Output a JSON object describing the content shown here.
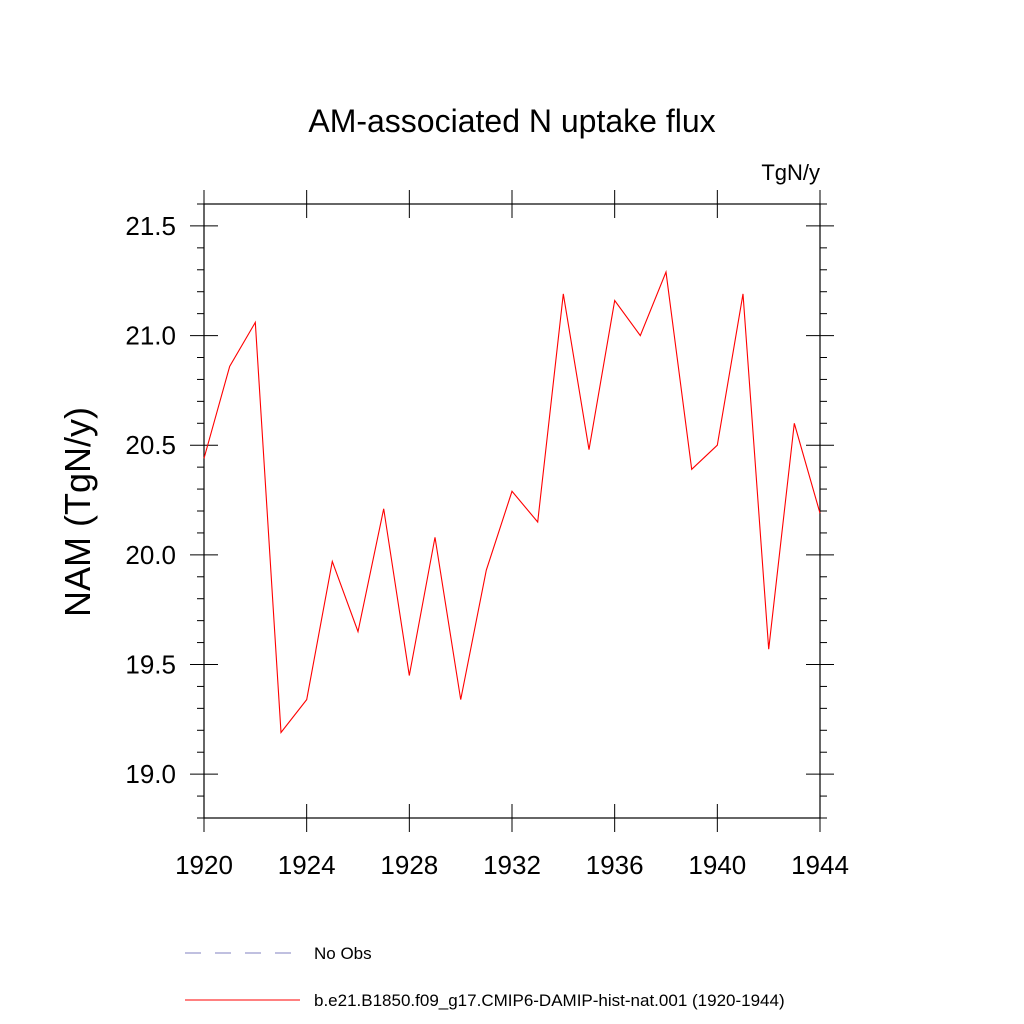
{
  "chart_data": {
    "type": "line",
    "title": "AM-associated N uptake flux",
    "units_label": "TgN/y",
    "ylabel": "NAM  (TgN/y)",
    "xlabel": "",
    "xlim": [
      1920,
      1944
    ],
    "ylim": [
      18.8,
      21.6
    ],
    "x_ticks": [
      1920,
      1924,
      1928,
      1932,
      1936,
      1940,
      1944
    ],
    "y_ticks": [
      "19.0",
      "19.5",
      "20.0",
      "20.5",
      "21.0",
      "21.5"
    ],
    "grid": false,
    "legend_position": "bottom",
    "series": [
      {
        "name": "b.e21.B1850.f09_g17.CMIP6-DAMIP-hist-nat.001 (1920-1944)",
        "color": "#ff0000",
        "style": "solid",
        "x": [
          1920,
          1921,
          1922,
          1923,
          1924,
          1925,
          1926,
          1927,
          1928,
          1929,
          1930,
          1931,
          1932,
          1933,
          1934,
          1935,
          1936,
          1937,
          1938,
          1939,
          1940,
          1941,
          1942,
          1943,
          1944
        ],
        "values": [
          20.44,
          20.86,
          21.06,
          19.19,
          19.34,
          19.97,
          19.65,
          20.21,
          19.45,
          20.08,
          19.34,
          19.93,
          20.29,
          20.15,
          21.19,
          20.48,
          21.16,
          21.0,
          21.29,
          20.39,
          20.5,
          21.19,
          19.57,
          20.6,
          20.19
        ]
      },
      {
        "name": "No Obs",
        "color": "#8080c0",
        "style": "dashed",
        "x": [],
        "values": []
      }
    ]
  }
}
